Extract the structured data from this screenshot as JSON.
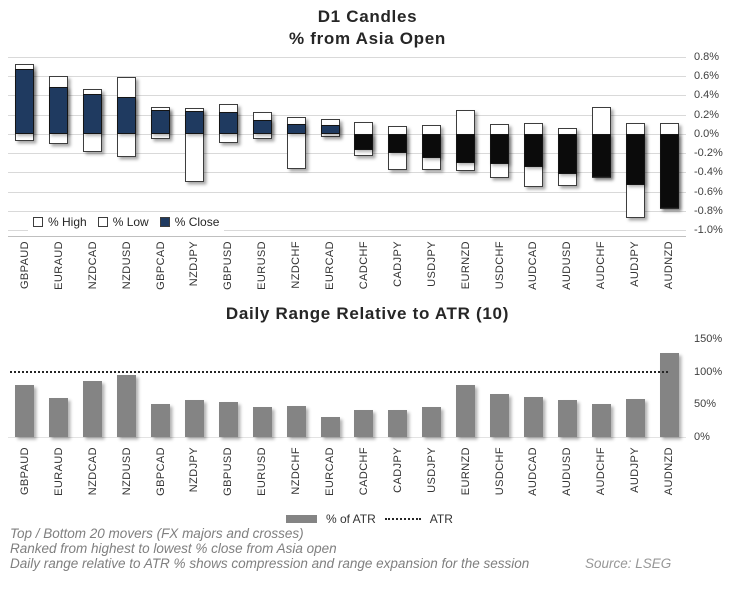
{
  "colors": {
    "close_positive": "#1f3a60",
    "close_negative": "#0b0b0b",
    "range_fill": "#ffffff",
    "bar_border": "#3d3d3d",
    "atr_bar_gray": "#848484",
    "gridline": "#d9d9d9",
    "axis_text": "#404040",
    "title_text": "#262626",
    "footer_text": "#7f7f7f"
  },
  "top_chart": {
    "title_line1": "D1 Candles",
    "title_line2": "% from Asia Open",
    "legend": [
      {
        "label": "% High",
        "swatch": "white-box"
      },
      {
        "label": "% Low",
        "swatch": "white-box"
      },
      {
        "label": "% Close",
        "swatch": "navy-box"
      }
    ],
    "y_ticks": [
      {
        "label": "0.8%",
        "value": 0.8
      },
      {
        "label": "0.6%",
        "value": 0.6
      },
      {
        "label": "0.4%",
        "value": 0.4
      },
      {
        "label": "0.2%",
        "value": 0.2
      },
      {
        "label": "0.0%",
        "value": 0.0
      },
      {
        "label": "-0.2%",
        "value": -0.2
      },
      {
        "label": "-0.4%",
        "value": -0.4
      },
      {
        "label": "-0.6%",
        "value": -0.6
      },
      {
        "label": "-0.8%",
        "value": -0.8
      },
      {
        "label": "-1.0%",
        "value": -1.0
      }
    ]
  },
  "bottom_chart": {
    "title": "Daily Range Relative to ATR (10)",
    "legend_bar_label": "% of ATR",
    "legend_line_label": "ATR",
    "atr_line_value": 100,
    "y_ticks": [
      {
        "label": "150%",
        "value": 150
      },
      {
        "label": "100%",
        "value": 100
      },
      {
        "label": "50%",
        "value": 50
      },
      {
        "label": "0%",
        "value": 0
      }
    ]
  },
  "chart_data": [
    {
      "type": "bar",
      "subtype": "candle-from-asia-open",
      "title": "D1 Candles % from Asia Open",
      "ylabel": "% from Asia Open",
      "ylim": [
        -1.0,
        0.85
      ],
      "grid": true,
      "axis_side": "right",
      "legend_position": "bottom-left",
      "categories": [
        "GBPAUD",
        "EURAUD",
        "NZDCAD",
        "NZDUSD",
        "GBPCAD",
        "NZDJPY",
        "GBPUSD",
        "EURUSD",
        "NZDCHF",
        "EURCAD",
        "CADCHF",
        "CADJPY",
        "USDJPY",
        "EURNZD",
        "USDCHF",
        "AUDCAD",
        "AUDUSD",
        "AUDCHF",
        "AUDJPY",
        "AUDNZD"
      ],
      "series": [
        {
          "name": "% High",
          "values": [
            0.73,
            0.6,
            0.47,
            0.59,
            0.28,
            0.27,
            0.31,
            0.23,
            0.18,
            0.15,
            0.12,
            0.08,
            0.09,
            0.25,
            0.1,
            0.11,
            0.06,
            0.28,
            0.11,
            0.11
          ]
        },
        {
          "name": "% Low",
          "values": [
            -0.08,
            -0.11,
            -0.19,
            -0.24,
            -0.05,
            -0.5,
            -0.09,
            -0.05,
            -0.36,
            -0.03,
            -0.23,
            -0.38,
            -0.38,
            -0.39,
            -0.46,
            -0.55,
            -0.54,
            -0.46,
            -0.88,
            -0.78
          ]
        },
        {
          "name": "% Close",
          "values": [
            0.67,
            0.49,
            0.41,
            0.38,
            0.25,
            0.24,
            0.23,
            0.14,
            0.1,
            0.09,
            -0.17,
            -0.2,
            -0.25,
            -0.3,
            -0.31,
            -0.35,
            -0.42,
            -0.45,
            -0.53,
            -0.77
          ]
        }
      ]
    },
    {
      "type": "bar",
      "title": "Daily Range Relative to ATR (10)",
      "ylabel": "% of ATR",
      "ylim": [
        0,
        160
      ],
      "grid": false,
      "axis_side": "right",
      "reference_line": {
        "name": "ATR",
        "value": 100
      },
      "categories": [
        "GBPAUD",
        "EURAUD",
        "NZDCAD",
        "NZDUSD",
        "GBPCAD",
        "NZDJPY",
        "GBPUSD",
        "EURUSD",
        "NZDCHF",
        "EURCAD",
        "CADCHF",
        "CADJPY",
        "USDJPY",
        "EURNZD",
        "USDCHF",
        "AUDCAD",
        "AUDUSD",
        "AUDCHF",
        "AUDJPY",
        "AUDNZD"
      ],
      "series": [
        {
          "name": "% of ATR",
          "values": [
            80,
            60,
            85,
            95,
            50,
            57,
            53,
            46,
            48,
            30,
            42,
            42,
            46,
            79,
            66,
            61,
            57,
            51,
            58,
            129
          ]
        }
      ]
    }
  ],
  "footer": {
    "lines": [
      "Top / Bottom 20 movers (FX majors and crosses)",
      "Ranked from highest to lowest % close from Asia open",
      "Daily range relative to ATR % shows compression and range expansion for the session"
    ],
    "source": "Source: LSEG"
  }
}
